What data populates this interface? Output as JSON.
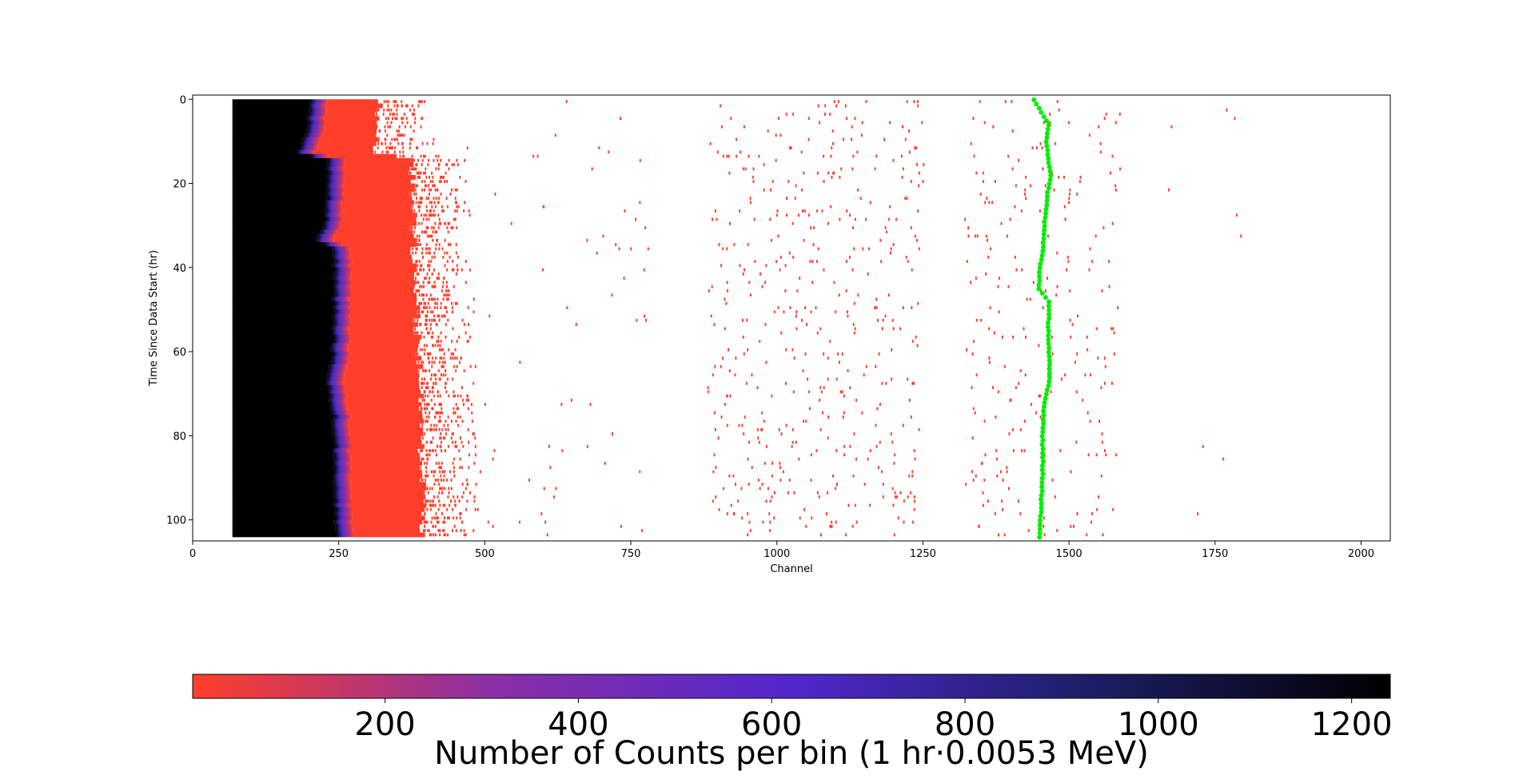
{
  "chart_data": {
    "type": "heatmap",
    "title": "",
    "xlabel": "Channel",
    "ylabel": "Time Since Data Start (hr)",
    "xlim": [
      0,
      2050
    ],
    "ylim": [
      105,
      -1
    ],
    "y_inverted": true,
    "x_ticks": [
      0,
      250,
      500,
      750,
      1000,
      1250,
      1500,
      1750,
      2000
    ],
    "y_ticks": [
      0,
      20,
      40,
      60,
      80,
      100
    ],
    "n_time_bins": 104,
    "saturated_region": {
      "channel_start": 68,
      "time_start": 0,
      "time_end": 104,
      "saturation_edge_channel_by_hour": [
        {
          "hour": 0,
          "channel": 200
        },
        {
          "hour": 6,
          "channel": 195
        },
        {
          "hour": 12,
          "channel": 180
        },
        {
          "hour": 14,
          "channel": 228
        },
        {
          "hour": 20,
          "channel": 230
        },
        {
          "hour": 30,
          "channel": 225
        },
        {
          "hour": 33,
          "channel": 210
        },
        {
          "hour": 35,
          "channel": 240
        },
        {
          "hour": 50,
          "channel": 240
        },
        {
          "hour": 60,
          "channel": 238
        },
        {
          "hour": 66,
          "channel": 228
        },
        {
          "hour": 75,
          "channel": 240
        },
        {
          "hour": 104,
          "channel": 243
        }
      ],
      "dense_edge_channel_by_hour": [
        {
          "hour": 0,
          "channel": 320
        },
        {
          "hour": 12,
          "channel": 315
        },
        {
          "hour": 14,
          "channel": 375
        },
        {
          "hour": 40,
          "channel": 380
        },
        {
          "hour": 70,
          "channel": 390
        },
        {
          "hour": 104,
          "channel": 395
        }
      ],
      "fringe_extent_channels": 80
    },
    "scatter_clusters": [
      {
        "channel_min": 420,
        "channel_max": 780,
        "counts_per_hour": 0.7
      },
      {
        "channel_min": 880,
        "channel_max": 1250,
        "counts_per_hour": 4.5
      },
      {
        "channel_min": 1320,
        "channel_max": 1580,
        "counts_per_hour": 2.4
      },
      {
        "channel_min": 1580,
        "channel_max": 1800,
        "counts_per_hour": 0.12
      }
    ],
    "peak_tracking": {
      "marker_color": "#00ee00",
      "points": [
        {
          "hour": 0,
          "channel": 1440
        },
        {
          "hour": 3,
          "channel": 1452
        },
        {
          "hour": 6,
          "channel": 1465
        },
        {
          "hour": 10,
          "channel": 1462
        },
        {
          "hour": 18,
          "channel": 1468
        },
        {
          "hour": 24,
          "channel": 1462
        },
        {
          "hour": 30,
          "channel": 1458
        },
        {
          "hour": 36,
          "channel": 1455
        },
        {
          "hour": 40,
          "channel": 1450
        },
        {
          "hour": 45,
          "channel": 1449
        },
        {
          "hour": 48,
          "channel": 1465
        },
        {
          "hour": 55,
          "channel": 1465
        },
        {
          "hour": 62,
          "channel": 1466
        },
        {
          "hour": 67,
          "channel": 1466
        },
        {
          "hour": 72,
          "channel": 1458
        },
        {
          "hour": 80,
          "channel": 1455
        },
        {
          "hour": 90,
          "channel": 1455
        },
        {
          "hour": 97,
          "channel": 1452
        },
        {
          "hour": 104,
          "channel": 1450
        }
      ]
    },
    "colorbar": {
      "label": "Number of Counts per bin (1 hr·0.0053 MeV)",
      "orientation": "horizontal",
      "vmin": 1,
      "vmax": 1240,
      "ticks": [
        200,
        400,
        600,
        800,
        1000,
        1200
      ],
      "colormap_stops": [
        {
          "value": 1,
          "color": "#ff3e2a"
        },
        {
          "value": 310,
          "color": "#8b2fa6"
        },
        {
          "value": 620,
          "color": "#5127cc"
        },
        {
          "value": 900,
          "color": "#20206e"
        },
        {
          "value": 1240,
          "color": "#000000"
        }
      ]
    }
  }
}
